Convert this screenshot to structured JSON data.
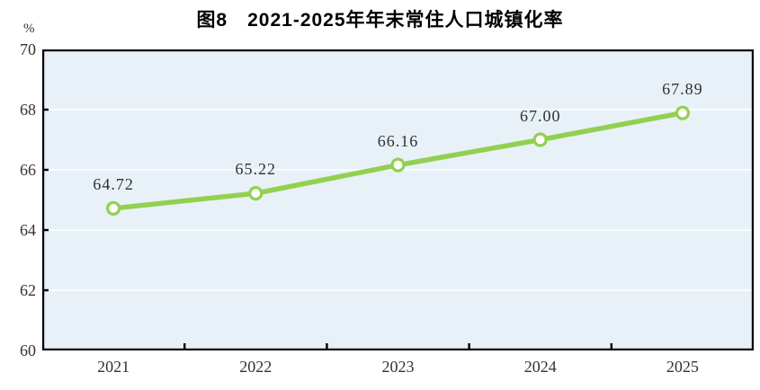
{
  "header": {
    "title": "图8　2021-2025年年末常住人口城镇化率"
  },
  "chart_data": {
    "type": "line",
    "title": "图8　2021-2025年年末常住人口城镇化率",
    "unit_label": "%",
    "categories": [
      "2021",
      "2022",
      "2023",
      "2024",
      "2025"
    ],
    "series": [
      {
        "name": "年末常住人口城镇化率",
        "values": [
          64.72,
          65.22,
          66.16,
          67.0,
          67.89
        ]
      }
    ],
    "point_labels": [
      "64.72",
      "65.22",
      "66.16",
      "67.00",
      "67.89"
    ],
    "ylabel": "%",
    "xlabel": "",
    "ylim": [
      60,
      70
    ],
    "y_ticks": [
      70,
      68,
      66,
      64,
      62,
      60
    ],
    "grid": true,
    "legend": "none",
    "colors": {
      "line": "#92d050",
      "marker_fill": "#ffffff",
      "plot_bg": "#e8f1f8",
      "gridline": "#ffffff",
      "axis": "#000000",
      "text": "#333333"
    }
  }
}
